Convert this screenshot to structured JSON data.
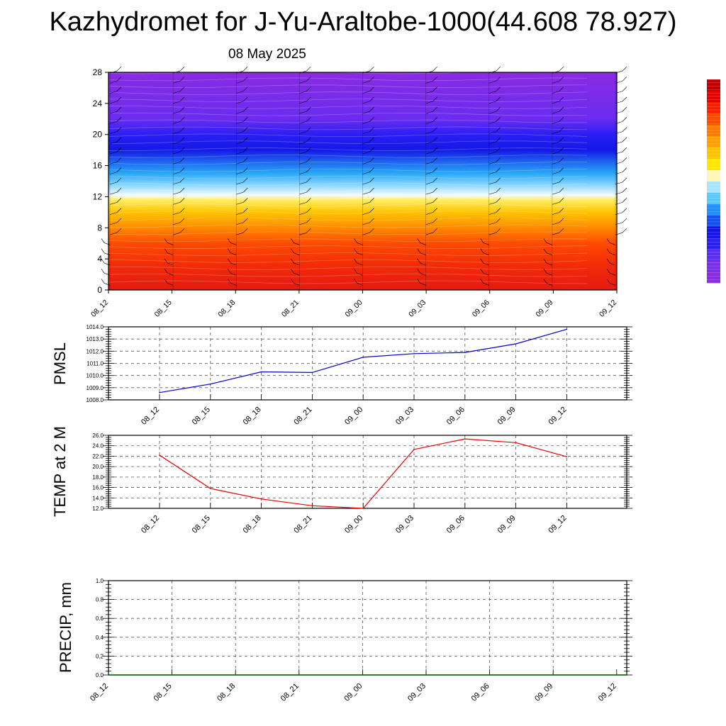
{
  "title": "Kazhydromet for J-Yu-Araltobe-1000(44.608 78.927)",
  "subtitle": "08 May 2025",
  "chart_data": [
    {
      "type": "heatmap",
      "x_tick_labels": [
        "08_12",
        "08_15",
        "08_18",
        "08_21",
        "09_00",
        "09_03",
        "09_06",
        "09_09",
        "09_12"
      ],
      "y_tick_labels": [
        "0",
        "4",
        "8",
        "12",
        "16",
        "20",
        "24",
        "28"
      ],
      "ylim": [
        0,
        28
      ],
      "colorbar_labels": [],
      "colorbar_colors": [
        "#8a2be2",
        "#7b2ee8",
        "#5a2df0",
        "#2a1ff5",
        "#1414e6",
        "#1450f0",
        "#1e90ff",
        "#5ac8fa",
        "#a8e4ff",
        "#fff5b4",
        "#ffe600",
        "#ffc400",
        "#ffa000",
        "#ff7a00",
        "#ff4a00",
        "#ff1e00",
        "#e60000",
        "#c00000"
      ],
      "layer_colors_by_height": [
        {
          "h": 0,
          "color": "#e41a10"
        },
        {
          "h": 3,
          "color": "#f22a08"
        },
        {
          "h": 6,
          "color": "#ff4a00"
        },
        {
          "h": 8,
          "color": "#ff8a00"
        },
        {
          "h": 10,
          "color": "#ffc400"
        },
        {
          "h": 11.6,
          "color": "#ffee66"
        },
        {
          "h": 12.2,
          "color": "#f4fbff"
        },
        {
          "h": 13.5,
          "color": "#8ad6ff"
        },
        {
          "h": 15,
          "color": "#28a8f5"
        },
        {
          "h": 16.5,
          "color": "#1e64f0"
        },
        {
          "h": 18,
          "color": "#1418e6"
        },
        {
          "h": 20,
          "color": "#2a1ff5"
        },
        {
          "h": 22,
          "color": "#6a2cf0"
        },
        {
          "h": 28,
          "color": "#8a2be2"
        }
      ],
      "wind_barb_columns": 9,
      "grid": false
    },
    {
      "type": "line",
      "ylabel": "PMSL",
      "categories": [
        "08_12",
        "08_15",
        "08_18",
        "08_21",
        "09_00",
        "09_03",
        "09_06",
        "09_09",
        "09_12"
      ],
      "values": [
        1008.6,
        1009.3,
        1010.3,
        1010.25,
        1011.5,
        1011.8,
        1011.9,
        1012.6,
        1013.8
      ],
      "ylim": [
        1008.0,
        1014.0
      ],
      "y_tick_labels": [
        "1008.0",
        "1009.0",
        "1010.0",
        "1011.0",
        "1012.0",
        "1013.0",
        "1014.0"
      ],
      "color": "#0000cc",
      "grid": true
    },
    {
      "type": "line",
      "ylabel": "TEMP at 2 M",
      "categories": [
        "08_12",
        "08_15",
        "08_18",
        "08_21",
        "09_00",
        "09_03",
        "09_06",
        "09_09",
        "09_12"
      ],
      "values": [
        22.2,
        15.8,
        13.8,
        12.5,
        12.0,
        23.3,
        25.3,
        24.6,
        21.9
      ],
      "ylim": [
        12.0,
        26.0
      ],
      "y_tick_labels": [
        "12.0",
        "14.0",
        "16.0",
        "18.0",
        "20.0",
        "22.0",
        "24.0",
        "26.0"
      ],
      "color": "#ee0000",
      "grid": true
    },
    {
      "type": "line",
      "ylabel": "PRECIP, mm",
      "categories": [
        "08_12",
        "08_15",
        "08_18",
        "08_21",
        "09_00",
        "09_03",
        "09_06",
        "09_09",
        "09_12"
      ],
      "values": [
        0,
        0,
        0,
        0,
        0,
        0,
        0,
        0,
        0
      ],
      "ylim": [
        0,
        1.0
      ],
      "y_tick_labels": [
        "0.0",
        "0.2",
        "0.4",
        "0.6",
        "0.8",
        "1.0"
      ],
      "color": "#006400",
      "grid": true
    }
  ]
}
